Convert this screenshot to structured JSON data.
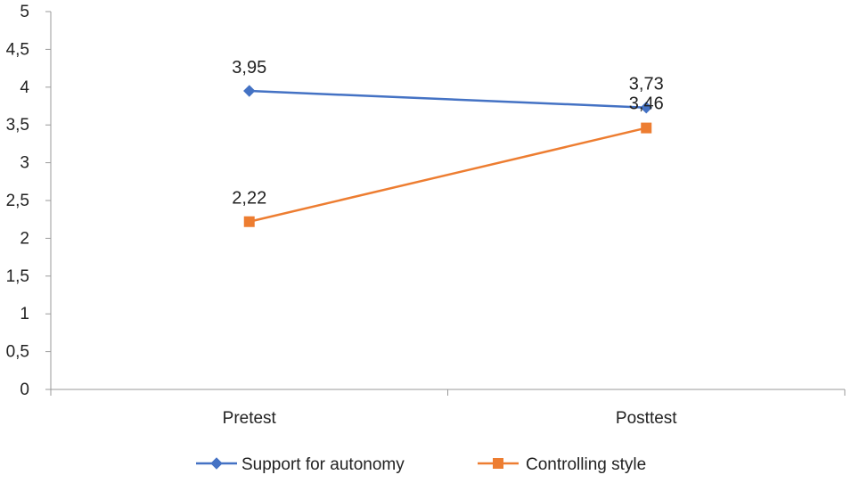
{
  "chart_data": {
    "type": "line",
    "categories": [
      "Pretest",
      "Posttest"
    ],
    "ylim": [
      0,
      5
    ],
    "yticks": [
      0,
      0.5,
      1,
      1.5,
      2,
      2.5,
      3,
      3.5,
      4,
      4.5,
      5
    ],
    "ytick_labels": [
      "0",
      "0,5",
      "1",
      "1,5",
      "2",
      "2,5",
      "3",
      "3,5",
      "4",
      "4,5",
      "5"
    ],
    "grid": false,
    "legend_position": "bottom",
    "series": [
      {
        "name": "Support for autonomy",
        "values": [
          3.95,
          3.73
        ],
        "value_labels": [
          "3,95",
          "3,73"
        ],
        "color": "#4472C4",
        "marker": "diamond"
      },
      {
        "name": "Controlling style",
        "values": [
          2.22,
          3.46
        ],
        "value_labels": [
          "2,22",
          "3,46"
        ],
        "color": "#ED7D31",
        "marker": "square"
      }
    ]
  }
}
